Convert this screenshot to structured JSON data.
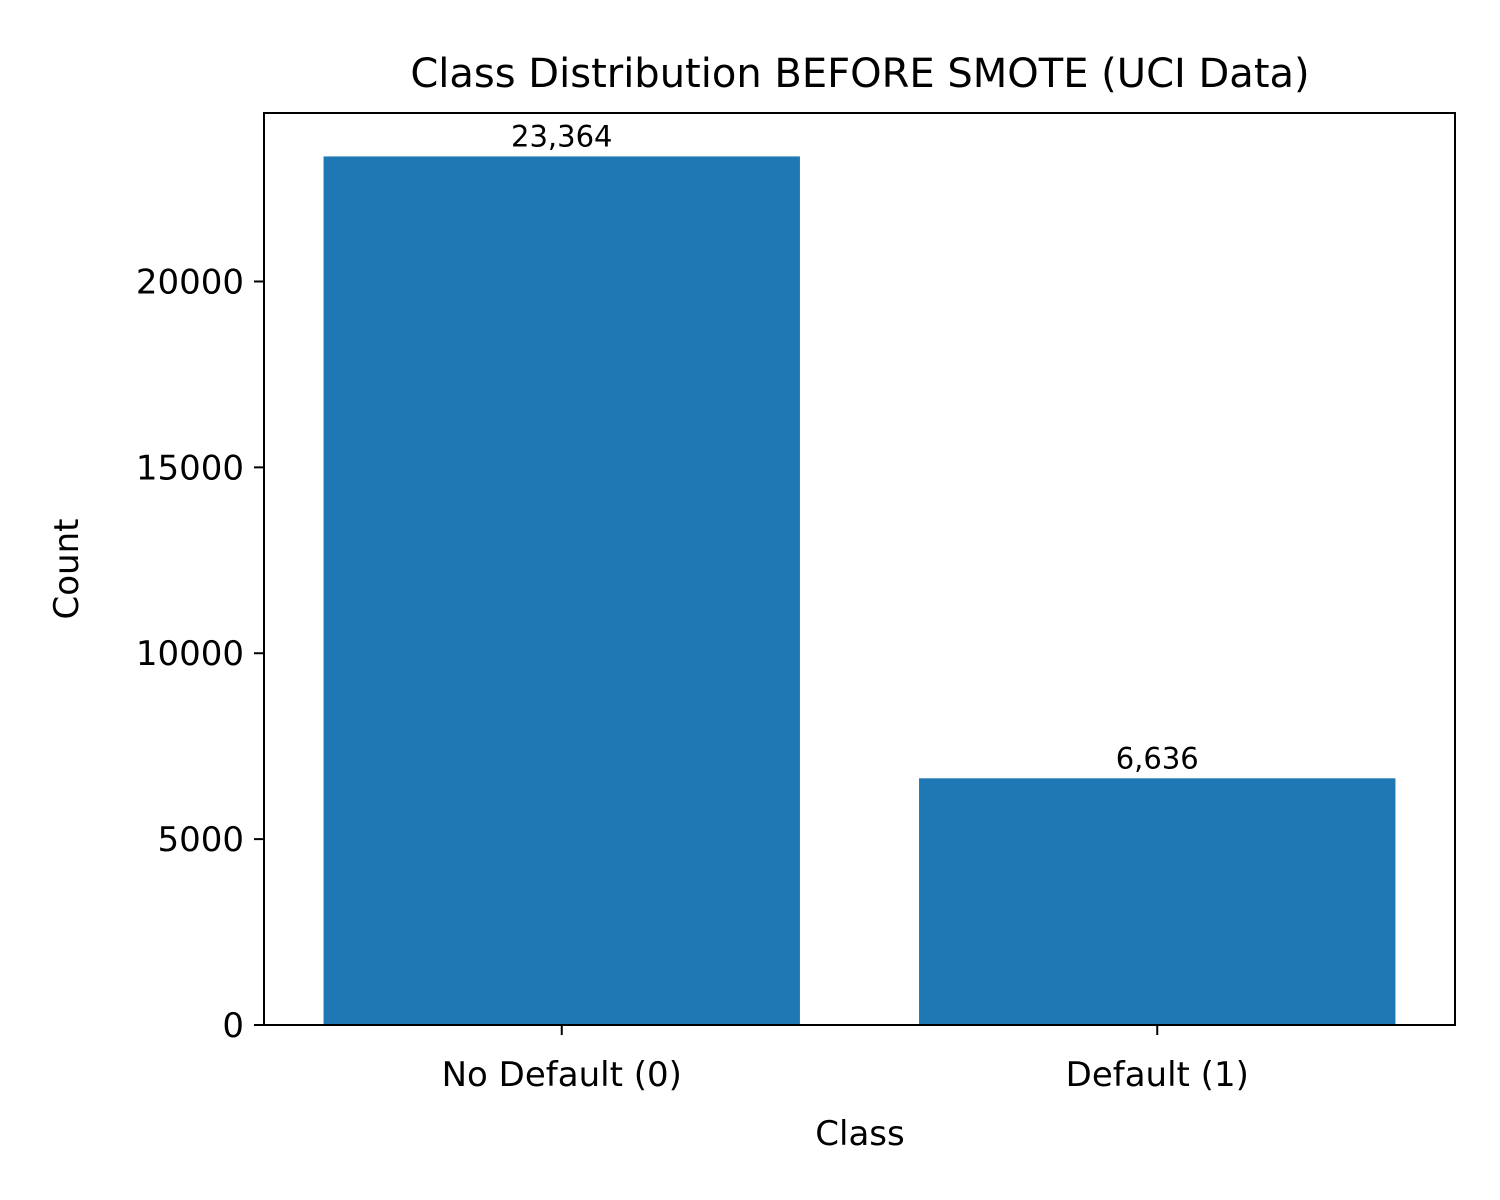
{
  "chart_data": {
    "type": "bar",
    "title": "Class Distribution BEFORE SMOTE (UCI Data)",
    "xlabel": "Class",
    "ylabel": "Count",
    "categories": [
      "No Default (0)",
      "Default (1)"
    ],
    "values": [
      23364,
      6636
    ],
    "value_labels": [
      "23,364",
      "6,636"
    ],
    "yticks": [
      0,
      5000,
      10000,
      15000,
      20000
    ],
    "ytick_labels": [
      "0",
      "5000",
      "10000",
      "15000",
      "20000"
    ],
    "ylim": [
      0,
      24532
    ],
    "grid": false,
    "legend": "none",
    "bar_color": "#1f77b4"
  }
}
